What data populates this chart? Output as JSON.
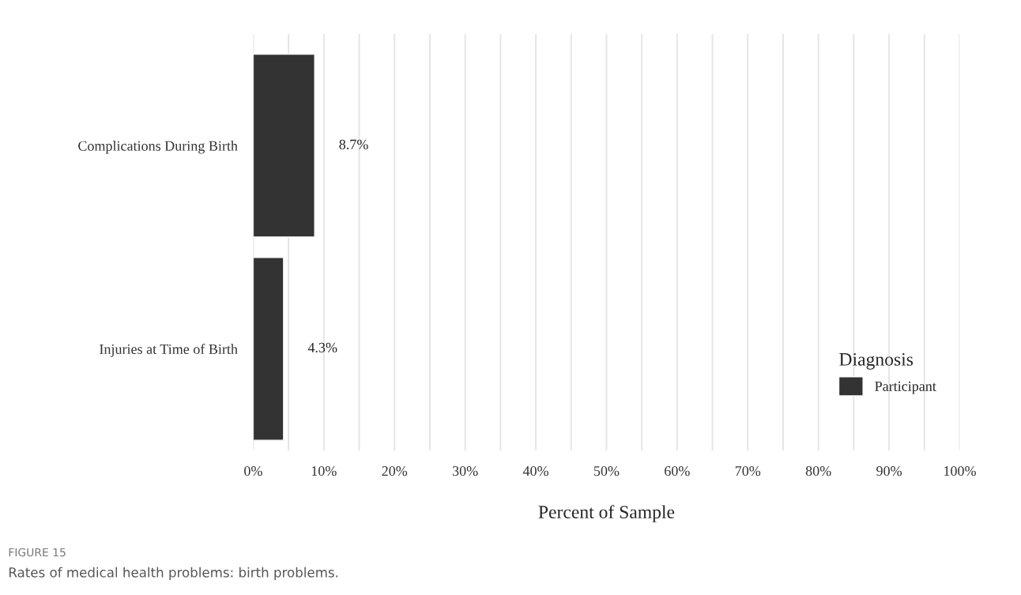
{
  "chart_data": {
    "type": "bar",
    "orientation": "horizontal",
    "categories": [
      "Complications During Birth",
      "Injuries at Time of Birth"
    ],
    "series": [
      {
        "name": "Participant",
        "color": "#333333",
        "values": [
          8.7,
          4.3
        ],
        "value_labels": [
          "8.7%",
          "4.3%"
        ]
      }
    ],
    "legend_title": "Diagnosis",
    "legend": "bottom right",
    "xlabel": "Percent of Sample",
    "xlim": [
      0,
      100
    ],
    "xticks": [
      {
        "value": 0,
        "label": "0%"
      },
      {
        "value": 5,
        "label": null
      },
      {
        "value": 10,
        "label": "10%"
      },
      {
        "value": 15,
        "label": null
      },
      {
        "value": 20,
        "label": "20%"
      },
      {
        "value": 25,
        "label": null
      },
      {
        "value": 30,
        "label": "30%"
      },
      {
        "value": 35,
        "label": null
      },
      {
        "value": 40,
        "label": "40%"
      },
      {
        "value": 45,
        "label": null
      },
      {
        "value": 50,
        "label": "50%"
      },
      {
        "value": 55,
        "label": null
      },
      {
        "value": 60,
        "label": "60%"
      },
      {
        "value": 65,
        "label": null
      },
      {
        "value": 70,
        "label": "70%"
      },
      {
        "value": 75,
        "label": null
      },
      {
        "value": 80,
        "label": "80%"
      },
      {
        "value": 85,
        "label": null
      },
      {
        "value": 90,
        "label": "90%"
      },
      {
        "value": 95,
        "label": null
      },
      {
        "value": 100,
        "label": "100%"
      }
    ],
    "grid": "x",
    "annotations": [
      "FIGURE 15",
      "Rates of medical health problems: birth problems."
    ]
  }
}
